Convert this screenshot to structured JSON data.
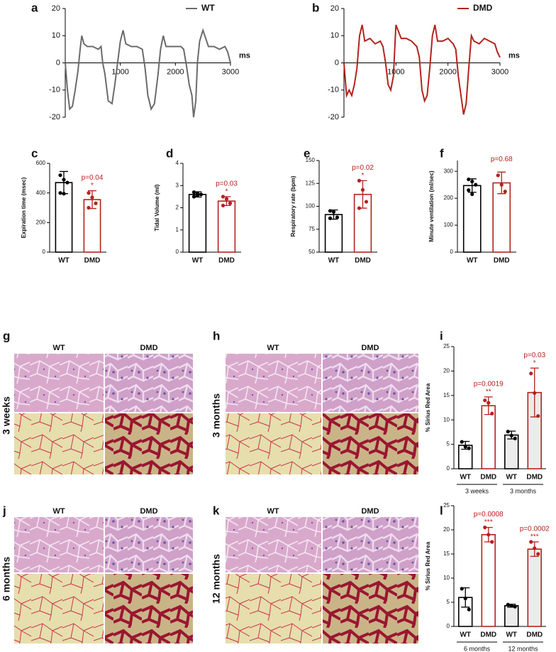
{
  "chart_data": [
    {
      "type": "line",
      "panel": "a",
      "x_label": "ms",
      "xlim": [
        0,
        3000
      ],
      "xticks": [
        1000,
        2000,
        3000
      ],
      "ylim": [
        -20,
        20
      ],
      "yticks": [
        20,
        10,
        0,
        -10,
        -20
      ],
      "x": [
        0,
        40,
        80,
        130,
        180,
        230,
        270,
        300,
        340,
        400,
        500,
        600,
        650,
        680,
        720,
        780,
        850,
        900,
        950,
        1000,
        1050,
        1100,
        1200,
        1300,
        1400,
        1450,
        1500,
        1560,
        1620,
        1680,
        1730,
        1780,
        1830,
        1900,
        2000,
        2100,
        2150,
        2200,
        2250,
        2300,
        2330,
        2370,
        2400,
        2440,
        2500,
        2600,
        2700,
        2800,
        2900,
        2950,
        3000
      ],
      "series": [
        {
          "name": "WT",
          "color": "#6b6b6b",
          "values": [
            0,
            -10,
            -17,
            -16,
            -10,
            -3,
            5,
            10,
            7,
            6,
            6,
            5,
            6,
            0,
            -4,
            -14,
            -15,
            -8,
            0,
            8,
            12,
            7,
            6,
            6,
            5,
            -2,
            -12,
            -17,
            -15,
            -5,
            5,
            10,
            6,
            6,
            6,
            6,
            5,
            -1,
            -8,
            -12,
            -20,
            -14,
            0,
            8,
            12,
            6,
            6,
            5,
            6,
            4,
            0
          ]
        }
      ]
    },
    {
      "type": "line",
      "panel": "b",
      "x_label": "ms",
      "xlim": [
        0,
        3000
      ],
      "xticks": [
        1000,
        2000,
        3000
      ],
      "ylim": [
        -20,
        20
      ],
      "yticks": [
        20,
        10,
        0,
        -10,
        -20
      ],
      "x": [
        0,
        50,
        100,
        150,
        200,
        250,
        300,
        350,
        400,
        500,
        600,
        700,
        750,
        800,
        850,
        900,
        950,
        1000,
        1100,
        1200,
        1300,
        1400,
        1450,
        1500,
        1550,
        1600,
        1650,
        1700,
        1750,
        1800,
        1900,
        2000,
        2100,
        2150,
        2200,
        2250,
        2300,
        2350,
        2400,
        2450,
        2500,
        2600,
        2700,
        2800,
        2900,
        2950,
        3000
      ],
      "series": [
        {
          "name": "DMD",
          "color": "#b3231d",
          "values": [
            0,
            -12,
            -10,
            -12,
            -8,
            -2,
            10,
            14,
            8,
            9,
            7,
            8,
            6,
            0,
            -8,
            -10,
            -5,
            14,
            9,
            9,
            8,
            6,
            2,
            -10,
            -14,
            -12,
            -2,
            10,
            14,
            8,
            8,
            9,
            7,
            5,
            -5,
            -12,
            -19,
            -15,
            -2,
            10,
            8,
            7,
            9,
            8,
            7,
            4,
            2
          ]
        }
      ]
    },
    {
      "type": "bar",
      "panel": "c",
      "y_label": "Expiration time (msec)",
      "ylim": [
        0,
        600
      ],
      "yticks": [
        0,
        200,
        400,
        600
      ],
      "categories": [
        "WT",
        "DMD"
      ],
      "colors": [
        "#000000",
        "#b3231d"
      ],
      "fills": [
        "#ffffff",
        "#ffffff"
      ],
      "values": [
        470,
        355
      ],
      "errors": [
        75,
        60
      ],
      "points": [
        [
          520,
          490,
          470,
          400,
          395
        ],
        [
          400,
          370,
          330,
          300
        ]
      ],
      "p_labels": [
        null,
        "p=0.04"
      ],
      "stars": [
        null,
        "*"
      ]
    },
    {
      "type": "bar",
      "panel": "d",
      "y_label": "Tidal Volume (ml)",
      "ylim": [
        0,
        4
      ],
      "yticks": [
        0,
        1,
        2,
        3,
        4
      ],
      "categories": [
        "WT",
        "DMD"
      ],
      "colors": [
        "#000000",
        "#b3231d"
      ],
      "fills": [
        "#ffffff",
        "#ffffff"
      ],
      "values": [
        2.6,
        2.3
      ],
      "errors": [
        0.12,
        0.2
      ],
      "points": [
        [
          2.7,
          2.65,
          2.6,
          2.5,
          2.55
        ],
        [
          2.5,
          2.4,
          2.2,
          2.1
        ]
      ],
      "p_labels": [
        null,
        "p=0.03"
      ],
      "stars": [
        null,
        "*"
      ]
    },
    {
      "type": "bar",
      "panel": "e",
      "y_label": "Respiratory rate (bpm)",
      "ylim": [
        50,
        150
      ],
      "yticks": [
        50,
        75,
        100,
        125,
        150
      ],
      "categories": [
        "WT",
        "DMD"
      ],
      "colors": [
        "#000000",
        "#b3231d"
      ],
      "fills": [
        "#ffffff",
        "#ffffff"
      ],
      "values": [
        91,
        113
      ],
      "errors": [
        5,
        15
      ],
      "points": [
        [
          95,
          94,
          88,
          87
        ],
        [
          128,
          118,
          105,
          98
        ]
      ],
      "p_labels": [
        null,
        "p=0.02"
      ],
      "stars": [
        null,
        "*"
      ]
    },
    {
      "type": "bar",
      "panel": "f",
      "y_label": "Minute ventilation (ml/sec)",
      "ylim": [
        0,
        340
      ],
      "yticks": [
        0,
        100,
        200,
        300
      ],
      "categories": [
        "WT",
        "DMD"
      ],
      "colors": [
        "#000000",
        "#b3231d"
      ],
      "fills": [
        "#ffffff",
        "#ffffff"
      ],
      "values": [
        247,
        257
      ],
      "errors": [
        25,
        40
      ],
      "points": [
        [
          270,
          262,
          250,
          230,
          215
        ],
        [
          285,
          250,
          225
        ]
      ],
      "p_labels": [
        null,
        "p=0.68"
      ],
      "stars": [
        null,
        null
      ]
    },
    {
      "type": "bar",
      "panel": "i",
      "y_label": "% Sirius Red Area",
      "ylim": [
        0,
        25
      ],
      "yticks": [
        0,
        5,
        10,
        15,
        20,
        25
      ],
      "categories": [
        "WT",
        "DMD",
        "WT",
        "DMD"
      ],
      "groups": [
        "3 weeks",
        "3 months"
      ],
      "colors": [
        "#000000",
        "#b3231d",
        "#000000",
        "#b3231d"
      ],
      "fills": [
        "#ffffff",
        "#ffffff",
        "#ececec",
        "#ececec"
      ],
      "values": [
        4.8,
        12.9,
        6.9,
        15.6
      ],
      "errors": [
        0.8,
        1.8,
        0.8,
        5
      ],
      "points": [
        [
          5.5,
          4.5,
          4.2
        ],
        [
          14,
          13.5,
          11.3
        ],
        [
          7.6,
          6.8,
          6.2
        ],
        [
          19.5,
          15.5,
          10.8
        ]
      ],
      "p_labels": [
        null,
        "p=0.0019",
        null,
        "p=0.03"
      ],
      "stars": [
        null,
        "**",
        null,
        "*"
      ]
    },
    {
      "type": "bar",
      "panel": "l",
      "y_label": "% Sirius Red Area",
      "ylim": [
        0,
        25
      ],
      "yticks": [
        0,
        5,
        10,
        15,
        20,
        25
      ],
      "categories": [
        "WT",
        "DMD",
        "WT",
        "DMD"
      ],
      "groups": [
        "6 months",
        "12 months"
      ],
      "colors": [
        "#000000",
        "#b3231d",
        "#000000",
        "#b3231d"
      ],
      "fills": [
        "#ffffff",
        "#ffffff",
        "#ececec",
        "#ececec"
      ],
      "values": [
        6,
        19,
        4.3,
        16
      ],
      "errors": [
        2,
        1.5,
        0.3,
        1.5
      ],
      "points": [
        [
          7.8,
          5.8,
          3.5
        ],
        [
          20.5,
          19,
          17.5
        ],
        [
          4.5,
          4.3,
          4.1
        ],
        [
          17.5,
          16.2,
          15
        ]
      ],
      "p_labels": [
        null,
        "p=0.0008",
        null,
        "p=0.0002"
      ],
      "stars": [
        null,
        "***",
        null,
        "***"
      ]
    }
  ],
  "micrographs": [
    {
      "panel": "g",
      "columns": [
        "WT",
        "DMD"
      ],
      "row_label": "3 weeks"
    },
    {
      "panel": "h",
      "columns": [
        "WT",
        "DMD"
      ],
      "row_label": "3 months"
    },
    {
      "panel": "j",
      "columns": [
        "WT",
        "DMD"
      ],
      "row_label": "6 months"
    },
    {
      "panel": "k",
      "columns": [
        "WT",
        "DMD"
      ],
      "row_label": "12 months"
    }
  ]
}
